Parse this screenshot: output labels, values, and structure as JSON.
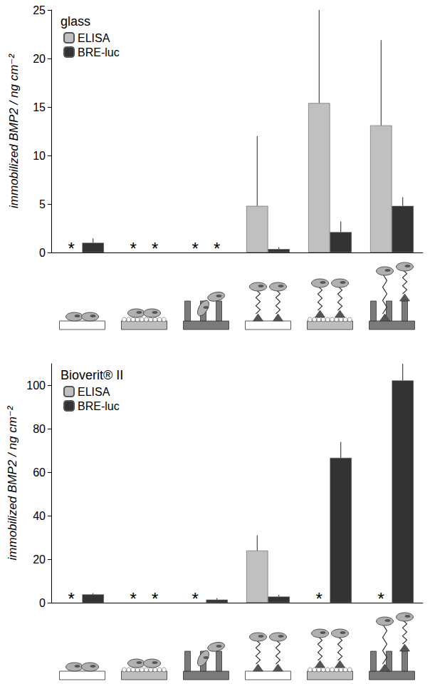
{
  "chart_data": [
    {
      "type": "bar",
      "title": "glass",
      "y_label": "immobilized BMP2 / ng cm⁻²",
      "categories": [
        null,
        null,
        null,
        null,
        null,
        null
      ],
      "series": [
        {
          "name": "ELISA",
          "color": "#c0c0c0",
          "values": [
            null,
            null,
            null,
            4.8,
            15.4,
            13.1
          ],
          "errors": [
            null,
            null,
            null,
            7.2,
            11.0,
            8.8
          ]
        },
        {
          "name": "BRE-luc",
          "color": "#333333",
          "values": [
            1.0,
            null,
            null,
            0.35,
            2.1,
            4.8
          ],
          "errors": [
            0.45,
            null,
            null,
            0.2,
            1.1,
            0.9
          ]
        }
      ],
      "annotations": [
        {
          "text": "*",
          "category": 0,
          "series": "ELISA"
        },
        {
          "text": "*",
          "category": 1,
          "series": "ELISA"
        },
        {
          "text": "*",
          "category": 1,
          "series": "BRE-luc"
        },
        {
          "text": "*",
          "category": 2,
          "series": "ELISA"
        },
        {
          "text": "*",
          "category": 2,
          "series": "BRE-luc"
        }
      ],
      "ylim": [
        0,
        25
      ],
      "yticks": [
        0,
        5,
        10,
        15,
        20,
        25
      ],
      "grid": false,
      "legend": "upper left"
    },
    {
      "type": "bar",
      "title": "Bioverit® II",
      "y_label": "immobilized BMP2 / ng cm⁻²",
      "categories": [
        null,
        null,
        null,
        null,
        null,
        null
      ],
      "series": [
        {
          "name": "ELISA",
          "color": "#c0c0c0",
          "values": [
            null,
            null,
            null,
            24,
            null,
            null
          ],
          "errors": [
            null,
            null,
            null,
            7,
            null,
            null
          ]
        },
        {
          "name": "BRE-luc",
          "color": "#333333",
          "values": [
            3.8,
            null,
            1.4,
            2.8,
            66.7,
            102.3
          ],
          "errors": [
            0.6,
            null,
            0.7,
            0.8,
            7.3,
            9
          ]
        }
      ],
      "annotations": [
        {
          "text": "*",
          "category": 0,
          "series": "ELISA"
        },
        {
          "text": "*",
          "category": 1,
          "series": "ELISA"
        },
        {
          "text": "*",
          "category": 1,
          "series": "BRE-luc"
        },
        {
          "text": "*",
          "category": 2,
          "series": "ELISA"
        },
        {
          "text": "*",
          "category": 4,
          "series": "ELISA"
        },
        {
          "text": "*",
          "category": 5,
          "series": "ELISA"
        }
      ],
      "ylim": [
        0,
        110
      ],
      "yticks": [
        0,
        20,
        40,
        60,
        80,
        100
      ],
      "grid": false,
      "legend": "upper left"
    }
  ]
}
